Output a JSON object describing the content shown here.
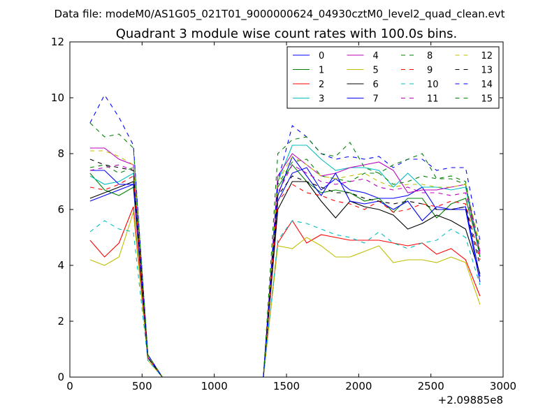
{
  "suptitle": "Data file: modeM0/AS1G05_021T01_9000000624_04930cztM0_level2_quad_clean.evt",
  "chart_data": {
    "type": "line",
    "title": "Quadrant 3 module wise count rates with 100.0s bins.",
    "xlabel": "",
    "ylabel": "",
    "x_offset_label": "+2.09885e8",
    "xlim": [
      0,
      3000
    ],
    "ylim": [
      0,
      12
    ],
    "xticks": [
      0,
      500,
      1000,
      1500,
      2000,
      2500,
      3000
    ],
    "yticks": [
      0,
      2,
      4,
      6,
      8,
      10,
      12
    ],
    "grid": false,
    "legend_position": "top-right",
    "legend_columns": 4,
    "x": [
      140,
      240,
      340,
      440,
      540,
      640,
      740,
      840,
      940,
      1040,
      1140,
      1240,
      1340,
      1440,
      1540,
      1640,
      1740,
      1840,
      1940,
      2040,
      2140,
      2240,
      2340,
      2440,
      2540,
      2640,
      2740,
      2840
    ],
    "series": [
      {
        "name": "0",
        "color": "#0000ff",
        "dash": "solid",
        "values": [
          6.3,
          6.5,
          6.7,
          6.9,
          0.7,
          0,
          0,
          0,
          0,
          0,
          0,
          0,
          0,
          6.3,
          7.3,
          7.5,
          6.7,
          7.1,
          6.7,
          6.6,
          6.4,
          6.4,
          6.5,
          6.8,
          6.0,
          6.0,
          6.1,
          3.6
        ]
      },
      {
        "name": "1",
        "color": "#008000",
        "dash": "solid",
        "values": [
          7.3,
          6.7,
          6.5,
          6.8,
          0.7,
          0,
          0,
          0,
          0,
          0,
          0,
          0,
          0,
          6.8,
          7.6,
          7.0,
          6.6,
          6.7,
          6.6,
          6.3,
          6.4,
          5.9,
          6.4,
          6.4,
          5.7,
          6.2,
          6.4,
          4.5
        ]
      },
      {
        "name": "2",
        "color": "#ff0000",
        "dash": "solid",
        "values": [
          4.9,
          4.3,
          4.8,
          6.1,
          0.7,
          0,
          0,
          0,
          0,
          0,
          0,
          0,
          0,
          4.8,
          5.6,
          4.8,
          5.1,
          5.0,
          4.9,
          4.9,
          4.9,
          4.8,
          4.7,
          4.8,
          4.4,
          4.6,
          4.2,
          2.9
        ]
      },
      {
        "name": "3",
        "color": "#00bfbf",
        "dash": "solid",
        "values": [
          7.2,
          6.9,
          7.0,
          7.3,
          0.8,
          0,
          0,
          0,
          0,
          0,
          0,
          0,
          0,
          7.0,
          8.3,
          8.3,
          7.8,
          7.4,
          7.5,
          7.5,
          7.4,
          6.8,
          7.3,
          6.8,
          6.8,
          6.7,
          6.8,
          4.3
        ]
      },
      {
        "name": "4",
        "color": "#bf00bf",
        "dash": "solid",
        "values": [
          8.2,
          8.2,
          7.8,
          7.6,
          0.8,
          0,
          0,
          0,
          0,
          0,
          0,
          0,
          0,
          7.2,
          8.0,
          7.6,
          7.2,
          7.3,
          7.5,
          7.6,
          7.7,
          7.4,
          6.6,
          6.7,
          6.7,
          6.8,
          6.9,
          4.4
        ]
      },
      {
        "name": "5",
        "color": "#bfbf00",
        "dash": "solid",
        "values": [
          4.2,
          4.0,
          4.3,
          5.9,
          0.6,
          0,
          0,
          0,
          0,
          0,
          0,
          0,
          0,
          4.7,
          4.6,
          5.0,
          4.7,
          4.3,
          4.3,
          4.5,
          4.7,
          4.1,
          4.2,
          4.2,
          4.1,
          4.3,
          4.1,
          2.6
        ]
      },
      {
        "name": "6",
        "color": "#000000",
        "dash": "solid",
        "values": [
          6.4,
          6.6,
          6.8,
          7.0,
          0.7,
          0,
          0,
          0,
          0,
          0,
          0,
          0,
          0,
          6.0,
          7.0,
          7.0,
          6.3,
          5.7,
          6.3,
          6.1,
          6.0,
          5.8,
          5.3,
          5.5,
          5.8,
          5.6,
          5.3,
          3.7
        ]
      },
      {
        "name": "7",
        "color": "#0000ff",
        "dash": "solid",
        "values": [
          7.4,
          7.4,
          6.9,
          6.9,
          0.7,
          0,
          0,
          0,
          0,
          0,
          0,
          0,
          0,
          6.5,
          7.9,
          7.2,
          6.5,
          7.3,
          6.3,
          6.2,
          6.3,
          6.0,
          6.3,
          5.6,
          6.1,
          6.0,
          6.0,
          3.4
        ]
      },
      {
        "name": "8",
        "color": "#008000",
        "dash": "dashed",
        "values": [
          7.5,
          7.6,
          7.3,
          7.5,
          0.8,
          0,
          0,
          0,
          0,
          0,
          0,
          0,
          0,
          6.9,
          7.7,
          7.8,
          7.2,
          7.1,
          7.0,
          7.3,
          7.3,
          6.9,
          7.0,
          7.2,
          7.1,
          7.1,
          6.9,
          4.6
        ]
      },
      {
        "name": "9",
        "color": "#ff0000",
        "dash": "dashed",
        "values": [
          6.8,
          6.7,
          6.9,
          7.2,
          0.7,
          0,
          0,
          0,
          0,
          0,
          0,
          0,
          0,
          6.3,
          6.9,
          6.6,
          6.5,
          6.3,
          6.2,
          6.0,
          6.3,
          5.9,
          6.0,
          6.2,
          6.1,
          6.3,
          6.2,
          4.2
        ]
      },
      {
        "name": "10",
        "color": "#00bfbf",
        "dash": "dashed",
        "values": [
          5.2,
          5.6,
          5.3,
          5.2,
          0.6,
          0,
          0,
          0,
          0,
          0,
          0,
          0,
          0,
          4.9,
          5.6,
          5.5,
          5.3,
          5.1,
          5.0,
          4.8,
          5.2,
          4.8,
          4.6,
          4.8,
          4.9,
          5.3,
          5.0,
          3.3
        ]
      },
      {
        "name": "11",
        "color": "#bf00bf",
        "dash": "dashed",
        "values": [
          7.4,
          7.5,
          7.6,
          7.4,
          0.8,
          0,
          0,
          0,
          0,
          0,
          0,
          0,
          0,
          6.6,
          7.6,
          7.3,
          7.0,
          6.9,
          7.0,
          7.1,
          6.8,
          6.7,
          6.8,
          6.6,
          6.6,
          6.5,
          6.6,
          4.5
        ]
      },
      {
        "name": "12",
        "color": "#bfbf00",
        "dash": "dashed",
        "values": [
          8.1,
          8.1,
          7.9,
          7.6,
          0.8,
          0,
          0,
          0,
          0,
          0,
          0,
          0,
          0,
          7.0,
          7.9,
          7.6,
          7.2,
          7.1,
          7.2,
          7.3,
          7.0,
          6.8,
          6.9,
          6.9,
          6.8,
          6.8,
          6.9,
          4.7
        ]
      },
      {
        "name": "13",
        "color": "#000000",
        "dash": "dashed",
        "values": [
          7.8,
          7.6,
          7.5,
          7.4,
          0.7,
          0,
          0,
          0,
          0,
          0,
          0,
          0,
          0,
          6.5,
          7.2,
          7.0,
          6.8,
          6.6,
          6.6,
          6.4,
          6.3,
          6.2,
          6.3,
          6.2,
          6.0,
          6.0,
          6.1,
          4.0
        ]
      },
      {
        "name": "14",
        "color": "#0000ff",
        "dash": "dashed",
        "values": [
          9.1,
          10.1,
          9.3,
          8.3,
          0.8,
          0,
          0,
          0,
          0,
          0,
          0,
          0,
          0,
          7.0,
          9.0,
          8.6,
          8.0,
          7.8,
          7.9,
          7.8,
          7.9,
          7.5,
          7.8,
          7.8,
          7.4,
          7.5,
          7.5,
          4.9
        ]
      },
      {
        "name": "15",
        "color": "#008000",
        "dash": "dashed",
        "values": [
          9.1,
          8.6,
          8.7,
          8.2,
          0.8,
          0,
          0,
          0,
          0,
          0,
          0,
          0,
          0,
          8.0,
          8.5,
          8.6,
          8.0,
          7.9,
          8.4,
          7.5,
          7.3,
          7.6,
          7.8,
          8.0,
          7.1,
          7.2,
          7.0,
          4.3
        ]
      }
    ]
  }
}
